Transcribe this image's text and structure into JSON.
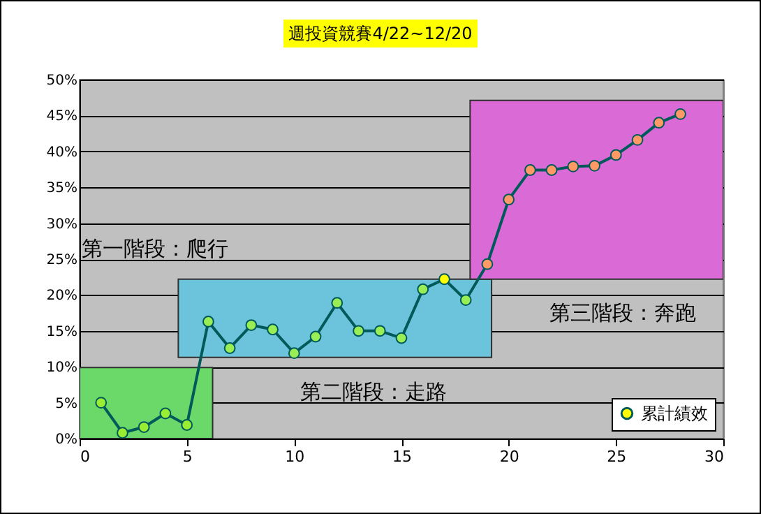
{
  "chart_data": {
    "type": "line",
    "title": "週投資競賽4/22~12/20",
    "x": [
      1,
      2,
      3,
      4,
      5,
      6,
      7,
      8,
      9,
      10,
      11,
      12,
      13,
      14,
      15,
      16,
      17,
      18,
      19,
      20,
      21,
      22,
      23,
      24,
      25,
      26,
      27,
      28
    ],
    "series": [
      {
        "name": "累計績效",
        "color": "#005a5a",
        "values": [
          5.0,
          0.8,
          1.6,
          3.5,
          1.9,
          16.3,
          12.6,
          15.8,
          15.2,
          11.9,
          14.2,
          18.9,
          15.0,
          15.0,
          14.0,
          20.8,
          22.2,
          19.3,
          24.3,
          33.3,
          37.4,
          37.4,
          37.9,
          38.0,
          39.5,
          41.6,
          44.0,
          45.2
        ],
        "colors": [
          "#99ee33",
          "#99ee33",
          "#99ee33",
          "#99ee33",
          "#99ee33",
          "#99ee55",
          "#99ee55",
          "#99ee55",
          "#99ee55",
          "#99ee55",
          "#99ee55",
          "#99ee55",
          "#99ee55",
          "#99ee55",
          "#99ee55",
          "#99ee55",
          "#ffff00",
          "#99ee55",
          "#ff9966",
          "#ff9966",
          "#ff9966",
          "#ff9966",
          "#ff9966",
          "#ff9966",
          "#ff9966",
          "#ff9966",
          "#ff9966",
          "#ff9966"
        ]
      }
    ],
    "xlim": [
      0,
      30
    ],
    "xticks": [
      0,
      5,
      10,
      15,
      20,
      25,
      30
    ],
    "ylim": [
      0,
      50
    ],
    "yticks": [
      {
        "value": 0,
        "label": "0%"
      },
      {
        "value": 5,
        "label": "5%"
      },
      {
        "value": 10,
        "label": "10%"
      },
      {
        "value": 15,
        "label": "15%"
      },
      {
        "value": 20,
        "label": "20%"
      },
      {
        "value": 25,
        "label": "25%"
      },
      {
        "value": 30,
        "label": "30%"
      },
      {
        "value": 35,
        "label": "35%"
      },
      {
        "value": 40,
        "label": "40%"
      },
      {
        "value": 45,
        "label": "45%"
      },
      {
        "value": 50,
        "label": "50%"
      }
    ],
    "annotations": [
      "第一階段：爬行",
      "第二階段：走路",
      "第三階段：奔跑"
    ],
    "bands": [
      {
        "axis": "x",
        "from": 0,
        "to": 6.2,
        "color": "#6ad96a"
      },
      {
        "axis": "x",
        "from": 4.6,
        "to": 19.2,
        "color": "#6cc4dc"
      },
      {
        "axis": "x",
        "from": 18.2,
        "to": 30,
        "color": "#da6ad6"
      }
    ],
    "grid": "y",
    "legend": "bottom right",
    "marker": "circle",
    "line_style": "solid"
  }
}
